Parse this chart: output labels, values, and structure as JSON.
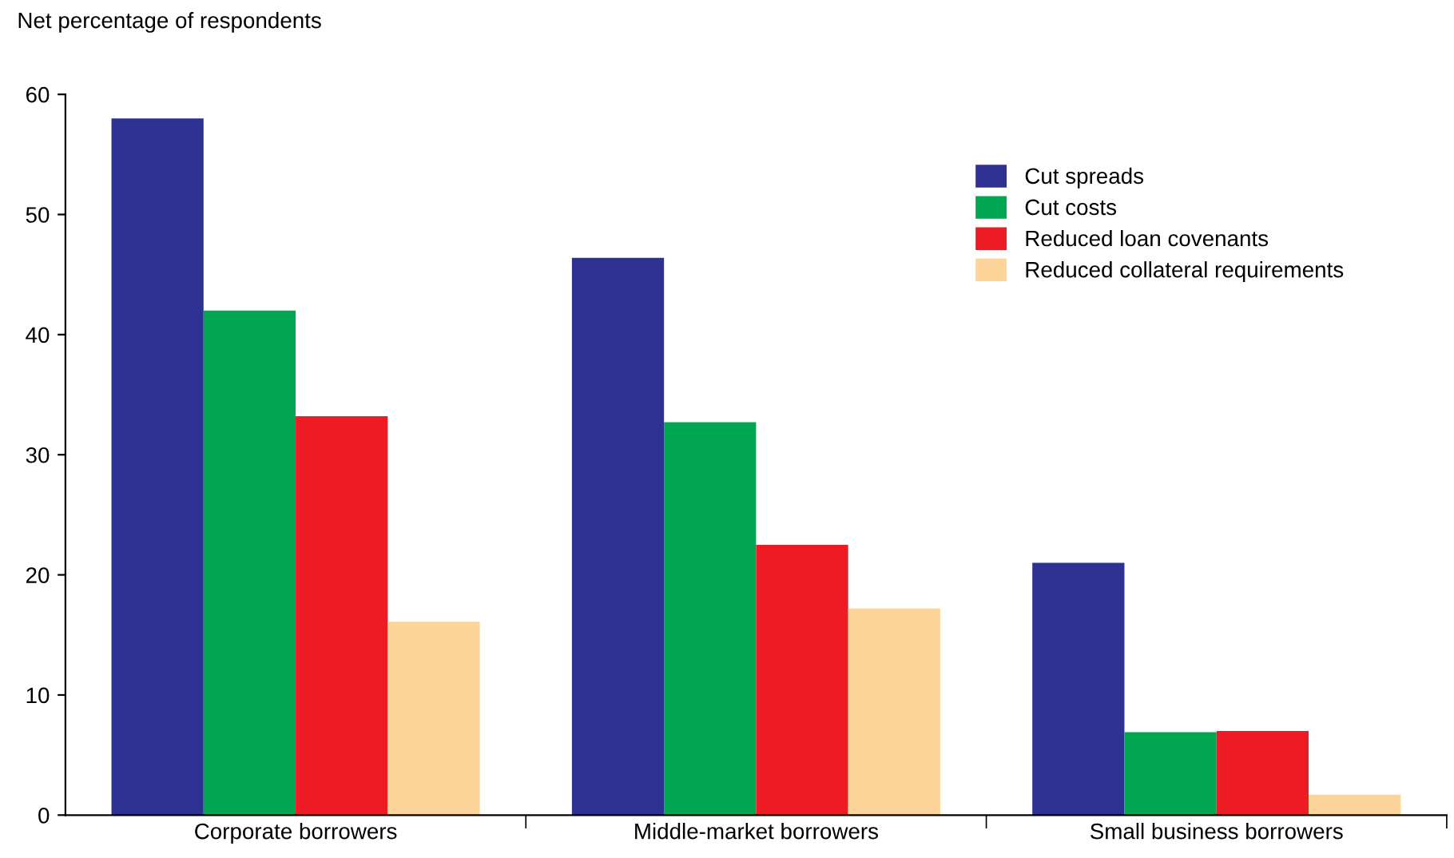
{
  "chart_data": {
    "type": "bar",
    "ylabel": "Net percentage of respondents",
    "categories": [
      "Corporate borrowers",
      "Middle-market borrowers",
      "Small business borrowers"
    ],
    "series": [
      {
        "name": "Cut spreads",
        "color": "#2e3192",
        "values": [
          58,
          46.4,
          21
        ]
      },
      {
        "name": "Cut costs",
        "color": "#00a651",
        "values": [
          42,
          32.7,
          6.9
        ]
      },
      {
        "name": "Reduced loan covenants",
        "color": "#ed1c24",
        "values": [
          33.2,
          22.5,
          7
        ]
      },
      {
        "name": "Reduced collateral requirements",
        "color": "#fdd59a",
        "values": [
          16.1,
          17.2,
          1.7
        ]
      }
    ],
    "ylim": [
      0,
      60
    ],
    "yticks": [
      0,
      10,
      20,
      30,
      40,
      50,
      60
    ],
    "grid": false,
    "legend": "top right"
  }
}
